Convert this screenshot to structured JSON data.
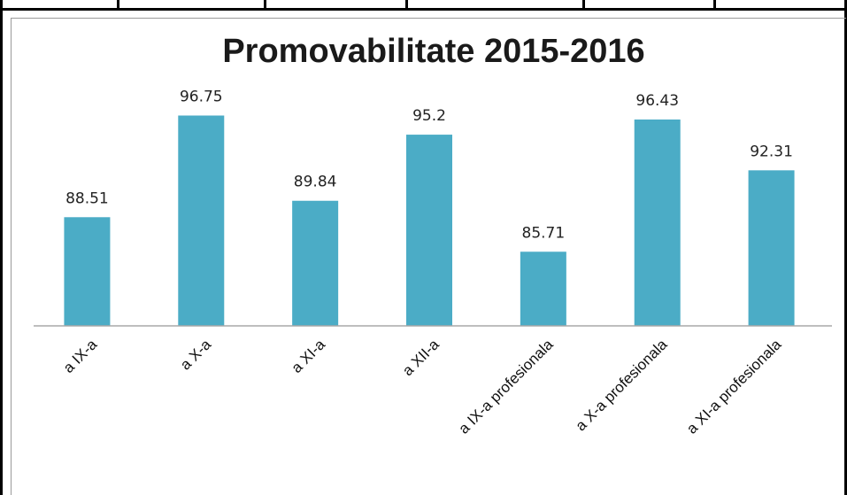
{
  "chart_data": {
    "type": "bar",
    "title": "Promovabilitate 2015-2016",
    "categories": [
      "a IX-a",
      "a X-a",
      "a XI-a",
      "a XII-a",
      "a IX-a profesionala",
      "a X-a profesionala",
      "a XI-a profesionala"
    ],
    "values": [
      88.51,
      96.75,
      89.84,
      95.2,
      85.71,
      96.43,
      92.31
    ],
    "value_labels": [
      "88.51",
      "96.75",
      "89.84",
      "95.2",
      "85.71",
      "96.43",
      "92.31"
    ],
    "ylim": [
      79.7,
      97
    ],
    "grid": false,
    "legend": "none",
    "colors": {
      "bar": "#4BACC6"
    }
  }
}
